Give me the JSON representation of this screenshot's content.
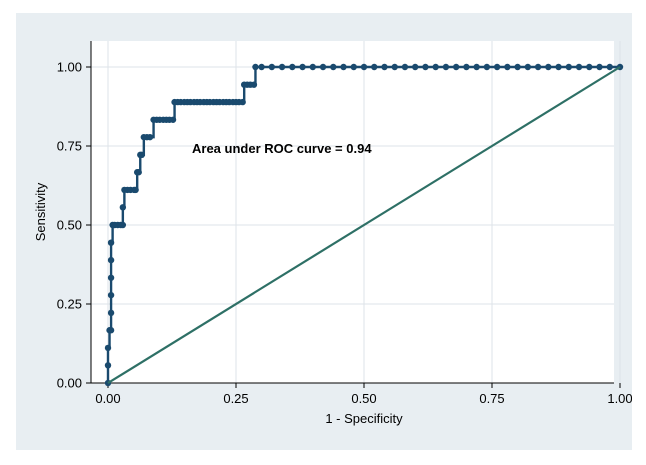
{
  "chart_data": {
    "type": "line",
    "title": "",
    "xlabel": "1 - Specificity",
    "ylabel": "Sensitivity",
    "xlim": [
      0,
      1
    ],
    "ylim": [
      0,
      1
    ],
    "x_ticks": [
      "0.00",
      "0.25",
      "0.50",
      "0.75",
      "1.00"
    ],
    "y_ticks": [
      "0.00",
      "0.25",
      "0.50",
      "0.75",
      "1.00"
    ],
    "grid": true,
    "annotation": "Area under ROC curve = 0.94",
    "series": [
      {
        "kind": "roc-curve",
        "color": "#1a4a6e",
        "points": [
          [
            0.0,
            0.0
          ],
          [
            0.0,
            0.056
          ],
          [
            0.0,
            0.111
          ],
          [
            0.003,
            0.167
          ],
          [
            0.006,
            0.167
          ],
          [
            0.006,
            0.222
          ],
          [
            0.006,
            0.278
          ],
          [
            0.006,
            0.333
          ],
          [
            0.006,
            0.389
          ],
          [
            0.006,
            0.444
          ],
          [
            0.009,
            0.5
          ],
          [
            0.013,
            0.5
          ],
          [
            0.019,
            0.5
          ],
          [
            0.025,
            0.5
          ],
          [
            0.029,
            0.5
          ],
          [
            0.029,
            0.556
          ],
          [
            0.032,
            0.611
          ],
          [
            0.038,
            0.611
          ],
          [
            0.044,
            0.611
          ],
          [
            0.051,
            0.611
          ],
          [
            0.054,
            0.611
          ],
          [
            0.057,
            0.667
          ],
          [
            0.06,
            0.667
          ],
          [
            0.063,
            0.722
          ],
          [
            0.066,
            0.722
          ],
          [
            0.07,
            0.778
          ],
          [
            0.076,
            0.778
          ],
          [
            0.082,
            0.778
          ],
          [
            0.089,
            0.833
          ],
          [
            0.095,
            0.833
          ],
          [
            0.101,
            0.833
          ],
          [
            0.108,
            0.833
          ],
          [
            0.114,
            0.833
          ],
          [
            0.12,
            0.833
          ],
          [
            0.127,
            0.833
          ],
          [
            0.13,
            0.889
          ],
          [
            0.136,
            0.889
          ],
          [
            0.142,
            0.889
          ],
          [
            0.149,
            0.889
          ],
          [
            0.155,
            0.889
          ],
          [
            0.161,
            0.889
          ],
          [
            0.168,
            0.889
          ],
          [
            0.174,
            0.889
          ],
          [
            0.18,
            0.889
          ],
          [
            0.187,
            0.889
          ],
          [
            0.193,
            0.889
          ],
          [
            0.199,
            0.889
          ],
          [
            0.206,
            0.889
          ],
          [
            0.212,
            0.889
          ],
          [
            0.218,
            0.889
          ],
          [
            0.225,
            0.889
          ],
          [
            0.231,
            0.889
          ],
          [
            0.237,
            0.889
          ],
          [
            0.244,
            0.889
          ],
          [
            0.25,
            0.889
          ],
          [
            0.256,
            0.889
          ],
          [
            0.263,
            0.889
          ],
          [
            0.266,
            0.944
          ],
          [
            0.272,
            0.944
          ],
          [
            0.278,
            0.944
          ],
          [
            0.285,
            0.944
          ],
          [
            0.288,
            1.0
          ],
          [
            0.3,
            1.0
          ],
          [
            0.32,
            1.0
          ],
          [
            0.34,
            1.0
          ],
          [
            0.36,
            1.0
          ],
          [
            0.38,
            1.0
          ],
          [
            0.4,
            1.0
          ],
          [
            0.42,
            1.0
          ],
          [
            0.44,
            1.0
          ],
          [
            0.46,
            1.0
          ],
          [
            0.48,
            1.0
          ],
          [
            0.5,
            1.0
          ],
          [
            0.52,
            1.0
          ],
          [
            0.54,
            1.0
          ],
          [
            0.56,
            1.0
          ],
          [
            0.58,
            1.0
          ],
          [
            0.6,
            1.0
          ],
          [
            0.62,
            1.0
          ],
          [
            0.64,
            1.0
          ],
          [
            0.66,
            1.0
          ],
          [
            0.68,
            1.0
          ],
          [
            0.7,
            1.0
          ],
          [
            0.72,
            1.0
          ],
          [
            0.74,
            1.0
          ],
          [
            0.76,
            1.0
          ],
          [
            0.78,
            1.0
          ],
          [
            0.8,
            1.0
          ],
          [
            0.82,
            1.0
          ],
          [
            0.84,
            1.0
          ],
          [
            0.86,
            1.0
          ],
          [
            0.88,
            1.0
          ],
          [
            0.9,
            1.0
          ],
          [
            0.92,
            1.0
          ],
          [
            0.94,
            1.0
          ],
          [
            0.96,
            1.0
          ],
          [
            0.98,
            1.0
          ],
          [
            1.0,
            1.0
          ]
        ]
      },
      {
        "kind": "reference-line",
        "color": "#2e7066",
        "points": [
          [
            0,
            0
          ],
          [
            1,
            1
          ]
        ]
      }
    ],
    "colors": {
      "figure_background": "#e8eef2",
      "plot_background": "#ffffff",
      "grid": "#dde3e8"
    }
  }
}
